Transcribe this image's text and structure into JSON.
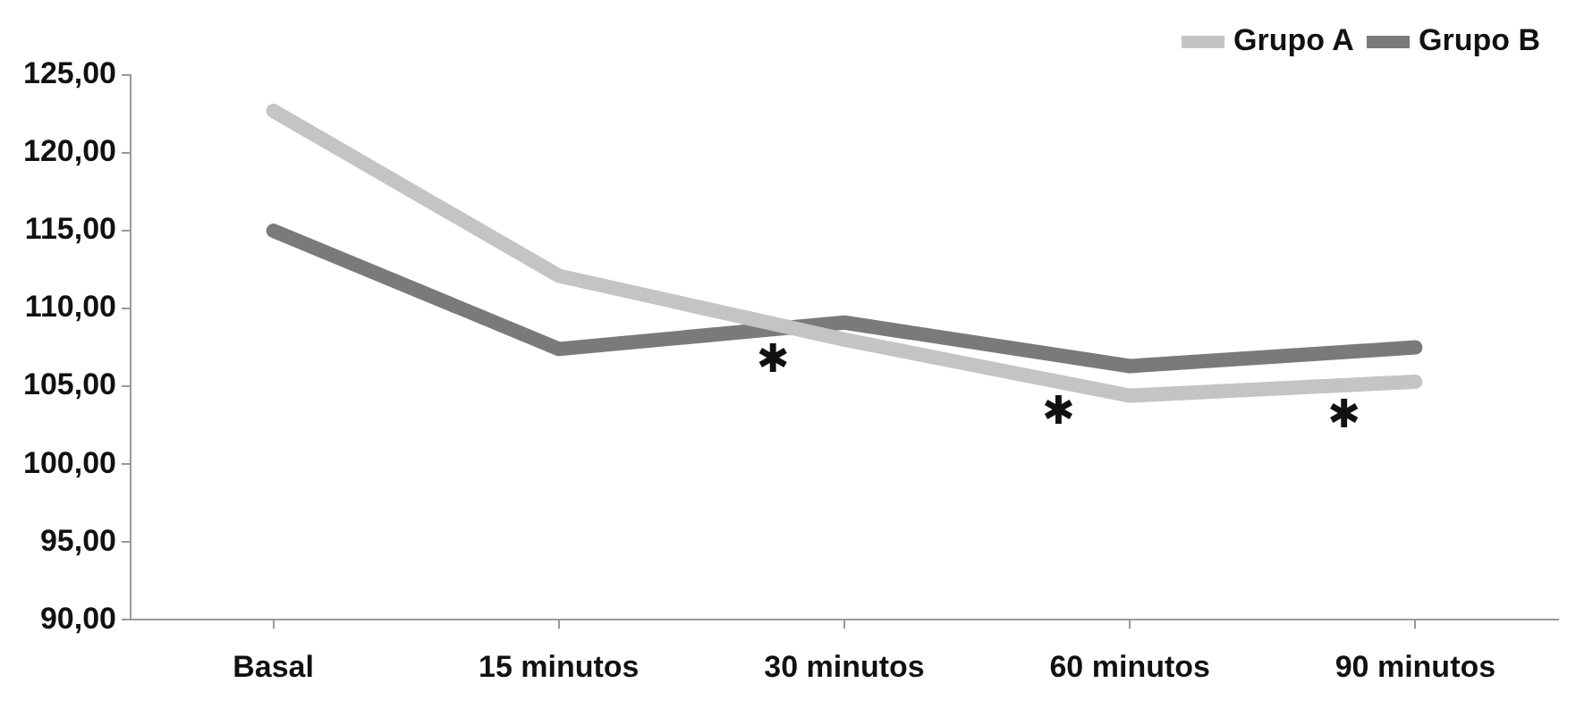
{
  "chart_data": {
    "type": "line",
    "categories": [
      "Basal",
      "15 minutos",
      "30 minutos",
      "60 minutos",
      "90 minutos"
    ],
    "series": [
      {
        "name": "Grupo A",
        "color": "#c4c4c4",
        "values": [
          122.7,
          112.1,
          108.0,
          104.4,
          105.3
        ]
      },
      {
        "name": "Grupo B",
        "color": "#7a7a7a",
        "values": [
          115.0,
          107.4,
          109.1,
          106.3,
          107.5
        ]
      }
    ],
    "ylim": [
      90,
      125
    ],
    "yticks": [
      {
        "value": 90,
        "label": "90,00"
      },
      {
        "value": 95,
        "label": "95,00"
      },
      {
        "value": 100,
        "label": "100,00"
      },
      {
        "value": 105,
        "label": "105,00"
      },
      {
        "value": 110,
        "label": "110,00"
      },
      {
        "value": 115,
        "label": "115,00"
      },
      {
        "value": 120,
        "label": "120,00"
      },
      {
        "value": 125,
        "label": "125,00"
      }
    ],
    "annotations": [
      "✱",
      "✱",
      "✱"
    ],
    "grid": false,
    "legend": "top right",
    "marker": "none",
    "line_style": "solid"
  }
}
